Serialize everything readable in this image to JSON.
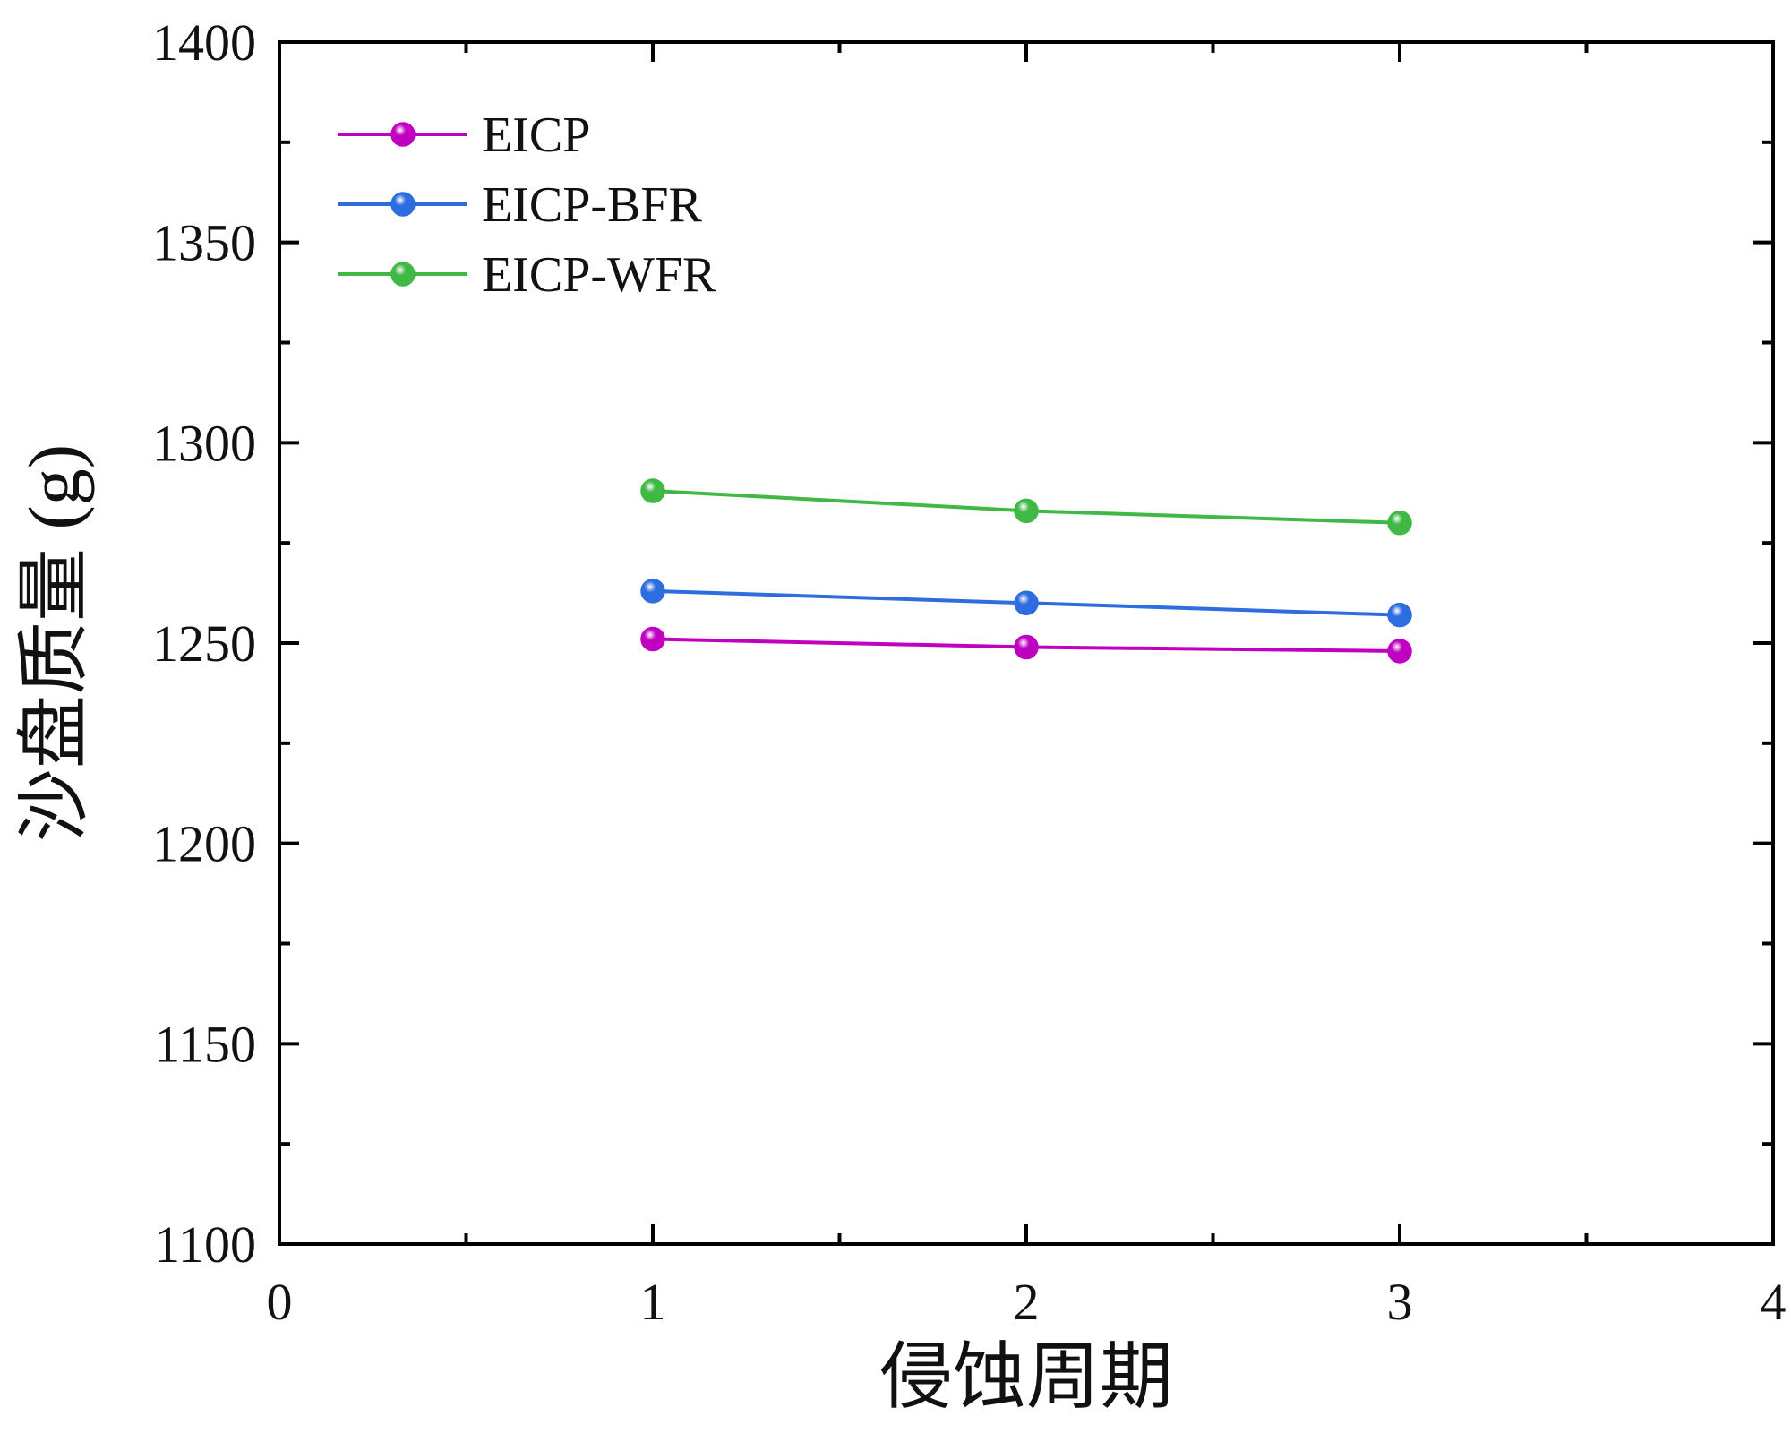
{
  "chart_data": {
    "type": "line",
    "title": "",
    "xlabel": "侵蚀周期",
    "ylabel": "沙盘质量 (g)",
    "xlim": [
      0,
      4
    ],
    "ylim": [
      1100,
      1400
    ],
    "x_ticks": [
      "0",
      "1",
      "2",
      "3",
      "4"
    ],
    "y_ticks": [
      "1100",
      "1150",
      "1200",
      "1250",
      "1300",
      "1350",
      "1400"
    ],
    "grid": false,
    "legend_position": "top-left",
    "x": [
      1,
      2,
      3
    ],
    "series": [
      {
        "name": "EICP",
        "color": "#c000c0",
        "values": [
          1251,
          1249,
          1248
        ]
      },
      {
        "name": "EICP-BFR",
        "color": "#2e6de0",
        "values": [
          1263,
          1260,
          1257
        ]
      },
      {
        "name": "EICP-WFR",
        "color": "#3fb845",
        "values": [
          1288,
          1283,
          1280
        ]
      }
    ]
  }
}
